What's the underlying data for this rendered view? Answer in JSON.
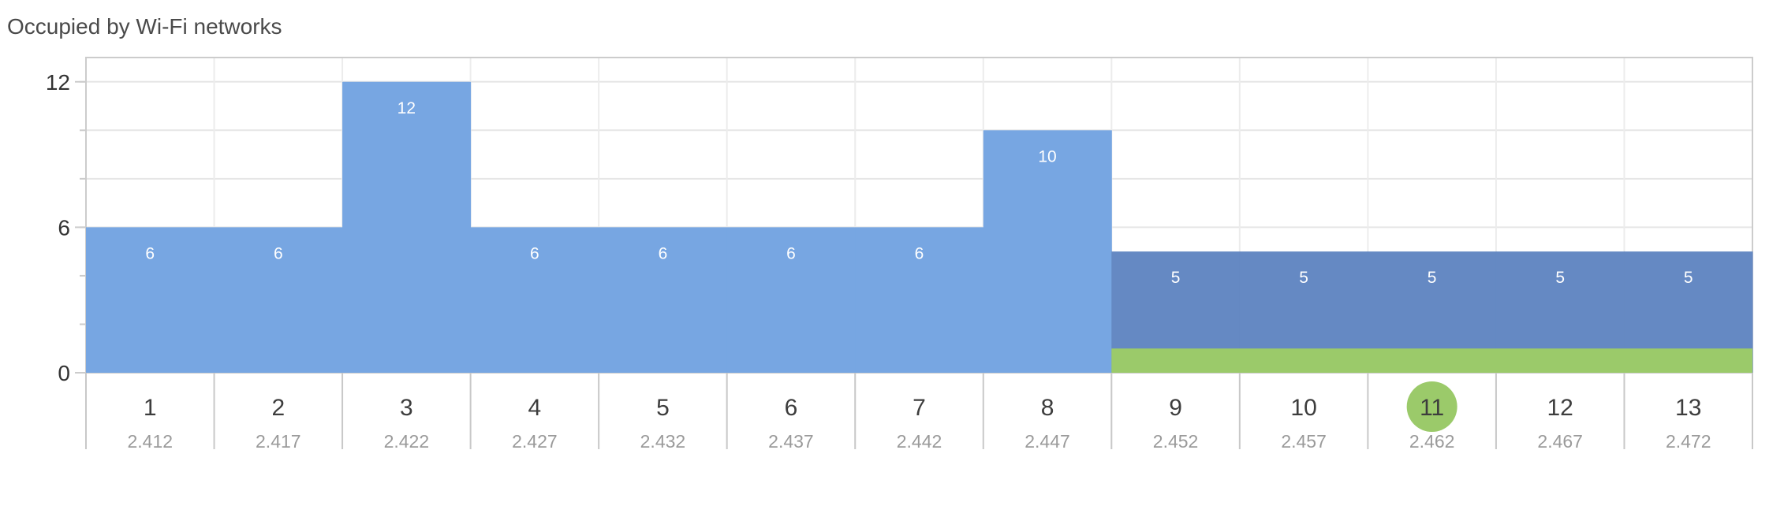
{
  "title": "Occupied by Wi-Fi networks",
  "chart_data": {
    "type": "bar",
    "title": "Occupied by Wi-Fi networks",
    "xlabel": "",
    "ylabel": "",
    "ylim": [
      0,
      13
    ],
    "yticks": [
      0,
      6,
      12
    ],
    "grid": true,
    "categories": [
      "1",
      "2",
      "3",
      "4",
      "5",
      "6",
      "7",
      "8",
      "9",
      "10",
      "11",
      "12",
      "13"
    ],
    "frequencies": [
      "2.412",
      "2.417",
      "2.422",
      "2.427",
      "2.432",
      "2.437",
      "2.442",
      "2.447",
      "2.452",
      "2.457",
      "2.462",
      "2.467",
      "2.472"
    ],
    "values": [
      6,
      6,
      12,
      6,
      6,
      6,
      6,
      10,
      5,
      5,
      5,
      5,
      5
    ],
    "highlighted_channel": "11",
    "highlight_span": {
      "from": "9",
      "to": "13",
      "value": 1
    },
    "colors": {
      "bar": "#77a6e2",
      "bar_overlap": "#6589c3",
      "highlight": "#9bca6a",
      "label": "#ffffff"
    }
  }
}
